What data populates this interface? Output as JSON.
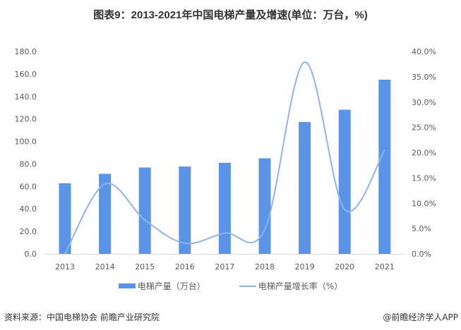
{
  "chart_data": {
    "type": "bar+line",
    "title": "图表9：2013-2021年中国电梯产量及增速(单位：万台，%)",
    "categories": [
      "2013",
      "2014",
      "2015",
      "2016",
      "2017",
      "2018",
      "2019",
      "2020",
      "2021"
    ],
    "series": [
      {
        "name": "电梯产量（万台）",
        "type": "bar",
        "axis": "left",
        "values": [
          62.8,
          71.2,
          76.8,
          77.7,
          81.0,
          85.0,
          117.3,
          128.2,
          154.9
        ]
      },
      {
        "name": "电梯产量增长率（%）",
        "type": "line",
        "smooth": true,
        "axis": "right",
        "values": [
          0.0,
          13.8,
          6.7,
          2.1,
          4.1,
          4.8,
          37.9,
          8.8,
          20.5
        ]
      }
    ],
    "left_axis": {
      "ylim": [
        0,
        180
      ],
      "ticks": [
        "0.0",
        "20.0",
        "40.0",
        "60.0",
        "80.0",
        "100.0",
        "120.0",
        "140.0",
        "160.0",
        "180.0"
      ]
    },
    "right_axis": {
      "ylim": [
        0,
        40
      ],
      "ticks": [
        "0.0%",
        "5.0%",
        "10.0%",
        "15.0%",
        "20.0%",
        "25.0%",
        "30.0%",
        "35.0%",
        "40.0%"
      ]
    },
    "grid": false,
    "legend": "bottom",
    "colors": {
      "bar": "#5b93e6",
      "line": "#8fb4ea"
    }
  },
  "footer": {
    "source": "资料来源：中国电梯协会 前瞻产业研究院",
    "credit": "@前瞻经济学人APP"
  }
}
